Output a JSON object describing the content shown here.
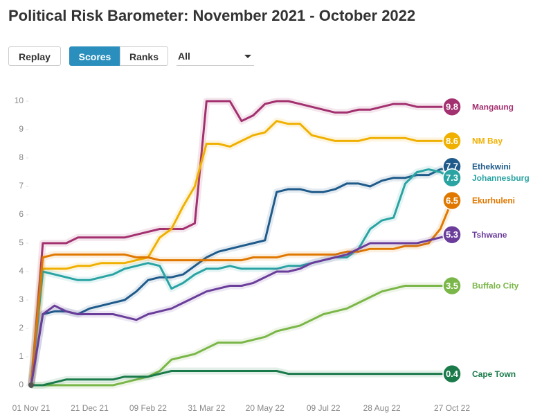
{
  "ui": {
    "buttons": [
      "Replay",
      "Scores",
      "Ranks"
    ],
    "filter": "All"
  },
  "chart_data": {
    "type": "line",
    "title": "Political Risk Barometer: November 2021 - October 2022",
    "categories": [
      "01 Nov 21",
      null,
      null,
      null,
      null,
      "21 Dec 21",
      null,
      null,
      null,
      null,
      "09 Feb 22",
      null,
      null,
      null,
      null,
      "31 Mar 22",
      null,
      null,
      null,
      null,
      "20 May 22",
      null,
      null,
      null,
      null,
      "09 Jul 22",
      null,
      null,
      null,
      null,
      "28 Aug 22",
      null,
      null,
      null,
      null,
      null,
      "27 Oct 22"
    ],
    "ylim": [
      0,
      10
    ],
    "yticks": [
      0,
      1,
      2,
      3,
      4,
      5,
      6,
      7,
      8,
      9,
      10
    ],
    "grid": false,
    "series": [
      {
        "name": "Mangaung",
        "color": "#a3306f",
        "values": [
          0,
          5,
          5,
          5,
          5.2,
          5.2,
          5.2,
          5.2,
          5.2,
          5.3,
          5.4,
          5.5,
          5.5,
          5.5,
          5.7,
          10,
          10,
          10,
          9.3,
          9.5,
          9.9,
          10,
          10,
          9.9,
          9.8,
          9.7,
          9.6,
          9.6,
          9.7,
          9.7,
          9.8,
          9.9,
          9.9,
          9.8,
          9.8,
          9.8,
          9.8
        ]
      },
      {
        "name": "NM Bay",
        "color": "#f0b000",
        "values": [
          0,
          4.1,
          4.1,
          4.1,
          4.2,
          4.2,
          4.3,
          4.3,
          4.3,
          4.4,
          4.5,
          5.2,
          5.5,
          6.3,
          7,
          8.5,
          8.5,
          8.4,
          8.6,
          8.8,
          8.9,
          9.3,
          9.2,
          9.2,
          8.8,
          8.7,
          8.6,
          8.6,
          8.6,
          8.7,
          8.7,
          8.7,
          8.7,
          8.6,
          8.6,
          8.6,
          8.6
        ]
      },
      {
        "name": "Ethekwini",
        "color": "#1e5a8a",
        "values": [
          0,
          2.5,
          2.6,
          2.6,
          2.5,
          2.7,
          2.8,
          2.9,
          3,
          3.3,
          3.7,
          3.8,
          3.8,
          3.9,
          4.2,
          4.5,
          4.7,
          4.8,
          4.9,
          5,
          5.1,
          6.8,
          6.9,
          6.9,
          6.8,
          6.8,
          6.9,
          7.1,
          7.1,
          7,
          7.2,
          7.3,
          7.3,
          7.4,
          7.4,
          7.6,
          7.7
        ]
      },
      {
        "name": "Johannesburg",
        "color": "#2aa3a3",
        "values": [
          0,
          4,
          3.9,
          3.8,
          3.7,
          3.7,
          3.8,
          3.9,
          4.1,
          4.2,
          4.3,
          4.2,
          3.4,
          3.6,
          3.9,
          4.1,
          4.1,
          4.2,
          4.1,
          4.1,
          4.1,
          4.1,
          4.2,
          4.2,
          4.3,
          4.4,
          4.5,
          4.5,
          4.8,
          5.5,
          5.8,
          5.9,
          7.1,
          7.5,
          7.6,
          7.5,
          7.3
        ]
      },
      {
        "name": "Ekurhuleni",
        "color": "#e07800",
        "values": [
          0,
          4.5,
          4.6,
          4.6,
          4.6,
          4.6,
          4.6,
          4.6,
          4.6,
          4.5,
          4.5,
          4.4,
          4.4,
          4.4,
          4.4,
          4.4,
          4.4,
          4.4,
          4.4,
          4.5,
          4.5,
          4.5,
          4.6,
          4.6,
          4.6,
          4.6,
          4.6,
          4.7,
          4.7,
          4.8,
          4.8,
          4.8,
          4.9,
          4.9,
          5,
          5.5,
          6.5
        ]
      },
      {
        "name": "Tshwane",
        "color": "#6a3d9a",
        "values": [
          0,
          2.5,
          2.8,
          2.6,
          2.5,
          2.5,
          2.5,
          2.5,
          2.4,
          2.3,
          2.5,
          2.6,
          2.7,
          2.9,
          3.1,
          3.3,
          3.4,
          3.5,
          3.5,
          3.6,
          3.8,
          4,
          4,
          4.1,
          4.3,
          4.4,
          4.5,
          4.6,
          4.8,
          5,
          5,
          5,
          5,
          5,
          5.1,
          5.2,
          5.3
        ]
      },
      {
        "name": "Buffalo City",
        "color": "#7ab648",
        "values": [
          0,
          0,
          0,
          0,
          0,
          0,
          0,
          0,
          0.1,
          0.2,
          0.3,
          0.5,
          0.9,
          1,
          1.1,
          1.3,
          1.5,
          1.5,
          1.5,
          1.6,
          1.7,
          1.9,
          2,
          2.1,
          2.3,
          2.5,
          2.6,
          2.7,
          2.9,
          3.1,
          3.3,
          3.4,
          3.5,
          3.5,
          3.5,
          3.5,
          3.5
        ]
      },
      {
        "name": "Cape Town",
        "color": "#1a7a4a",
        "values": [
          0,
          0,
          0.1,
          0.2,
          0.2,
          0.2,
          0.2,
          0.2,
          0.3,
          0.3,
          0.3,
          0.4,
          0.5,
          0.5,
          0.5,
          0.5,
          0.5,
          0.5,
          0.5,
          0.5,
          0.5,
          0.5,
          0.4,
          0.4,
          0.4,
          0.4,
          0.4,
          0.4,
          0.4,
          0.4,
          0.4,
          0.4,
          0.4,
          0.4,
          0.4,
          0.4,
          0.4
        ]
      }
    ]
  }
}
